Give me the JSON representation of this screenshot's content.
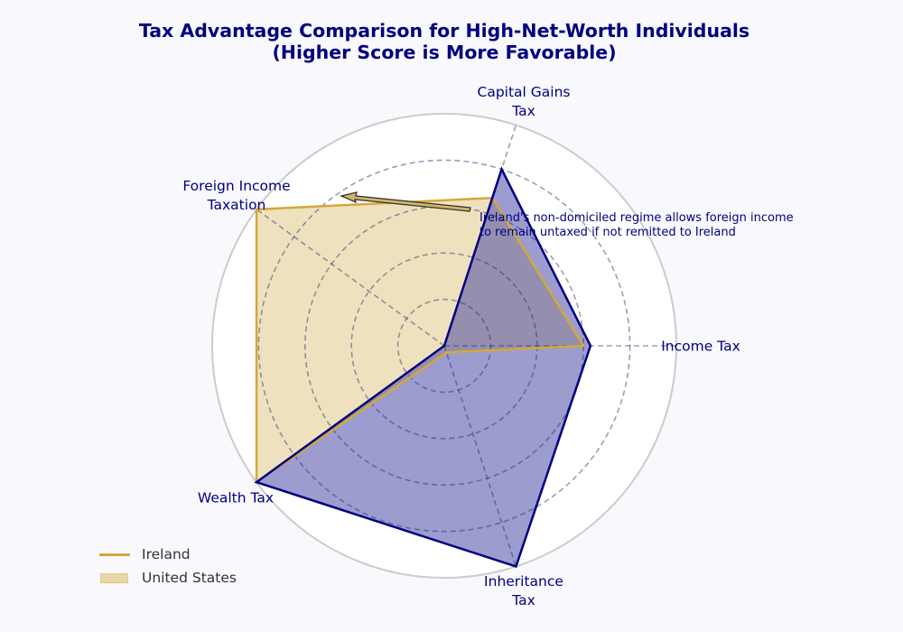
{
  "chart_data": {
    "type": "radar",
    "title": "Tax Advantage Comparison for High-Net-Worth Individuals",
    "subtitle": "(Higher Score is More Favorable)",
    "categories": [
      "Income Tax",
      "Capital Gains Tax",
      "Foreign Income Taxation",
      "Wealth Tax",
      "Inheritance Tax"
    ],
    "category_label_lines": [
      [
        "Income Tax"
      ],
      [
        "Capital Gains",
        "Tax"
      ],
      [
        "Foreign Income",
        "Taxation"
      ],
      [
        "Wealth Tax"
      ],
      [
        "Inheritance",
        "Tax"
      ]
    ],
    "rlim": [
      0,
      10
    ],
    "grid_values": [
      2,
      4,
      6,
      8
    ],
    "grid": true,
    "series": [
      {
        "name": "Ireland",
        "values": [
          6.0,
          6.7,
          10,
          10,
          0.3
        ],
        "color": "#d4a83a",
        "fill": "#e8d8a8",
        "fill_opacity": 0.75
      },
      {
        "name": "United States",
        "values": [
          6.3,
          8.0,
          0,
          10,
          10
        ],
        "color": "#000080",
        "fill": "#3a3aa0",
        "fill_opacity": 0.5
      }
    ],
    "annotation": {
      "text_lines": [
        "Ireland's non-domiciled regime allows foreign income",
        "to remain untaxed if not remitted to Ireland"
      ],
      "arrow_points_to": "Foreign Income Taxation"
    },
    "legend": {
      "position": "lower left",
      "entries": [
        {
          "label": "Ireland",
          "kind": "line",
          "color": "#d4a83a"
        },
        {
          "label": "United States",
          "kind": "patch",
          "color": "#e8d8a8",
          "edge": "#e3c77e"
        }
      ]
    }
  }
}
